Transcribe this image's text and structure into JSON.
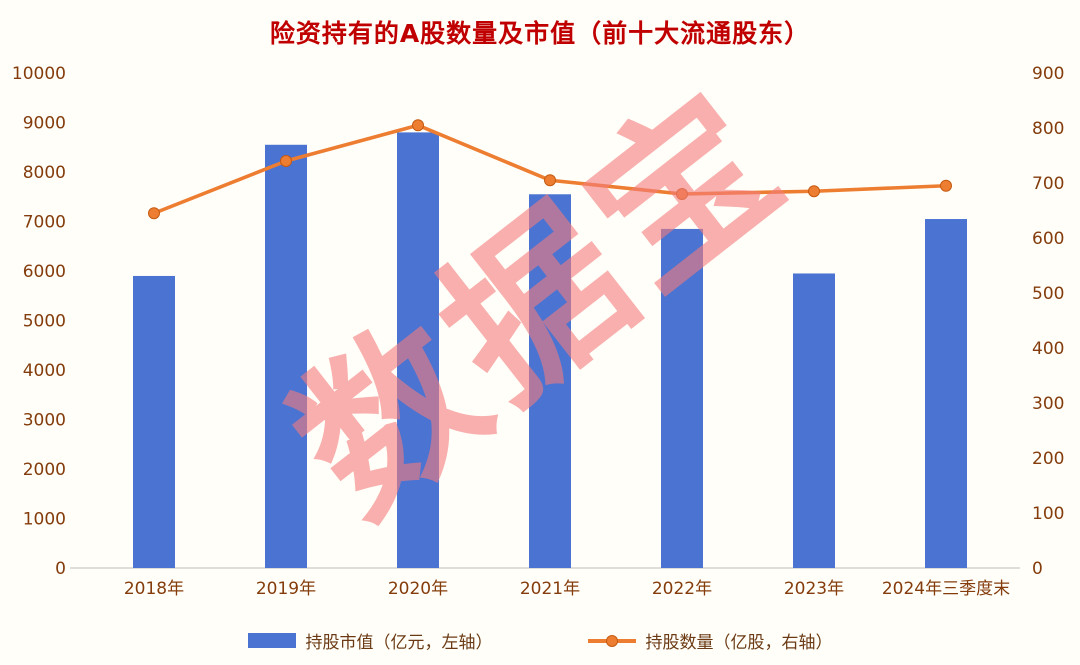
{
  "title": "险资持有的A股数量及市值（前十大流通股东）",
  "watermark": "数据宝",
  "colors": {
    "bar": "#4a73d2",
    "line": "#ed7d31",
    "line_marker_stroke": "#c55a11",
    "title": "#c00000",
    "axis_text": "#843c0c",
    "watermark": "#f47c7c",
    "baseline": "#d6d3cd",
    "background": "#fffef8"
  },
  "chart_data": {
    "type": "bar+line",
    "title": "险资持有的A股数量及市值（前十大流通股东）",
    "categories": [
      "2018年",
      "2019年",
      "2020年",
      "2021年",
      "2022年",
      "2023年",
      "2024年三季度末"
    ],
    "series": [
      {
        "name": "持股市值（亿元，左轴）",
        "type": "bar",
        "axis": "left",
        "values": [
          5900,
          8550,
          8800,
          7550,
          6850,
          5950,
          7050
        ]
      },
      {
        "name": "持股数量（亿股，右轴）",
        "type": "line",
        "axis": "right",
        "values": [
          645,
          740,
          805,
          705,
          680,
          685,
          695
        ]
      }
    ],
    "left_axis": {
      "min": 0,
      "max": 10000,
      "step": 1000
    },
    "right_axis": {
      "min": 0,
      "max": 900,
      "step": 100
    },
    "grid": false,
    "legend_position": "bottom"
  },
  "legend": {
    "bar_label": "持股市值（亿元，左轴）",
    "line_label": "持股数量（亿股，右轴）"
  }
}
